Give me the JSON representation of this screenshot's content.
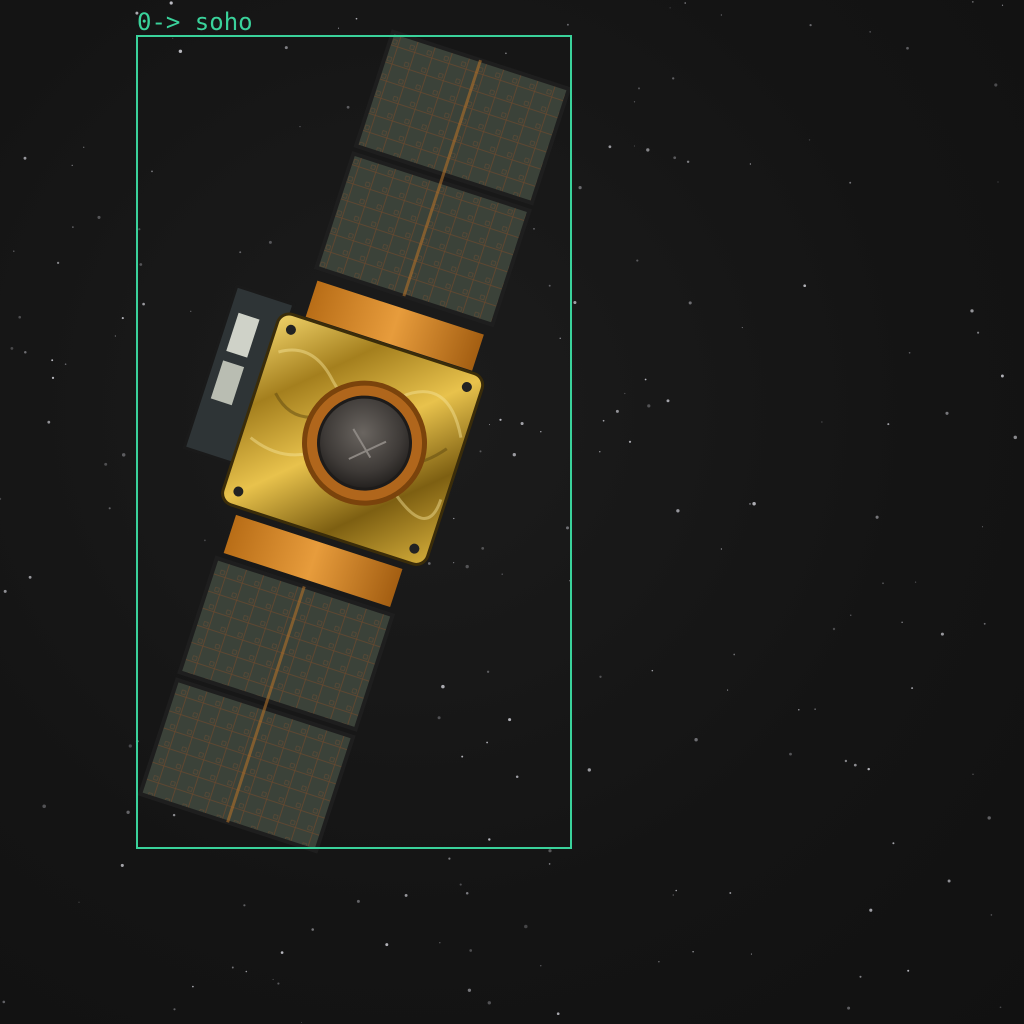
{
  "detection": {
    "label": "0-> soho",
    "box_color": "#3ad29b"
  },
  "scene": {
    "background_color": "#141414",
    "object_icon": "satellite-icon"
  }
}
